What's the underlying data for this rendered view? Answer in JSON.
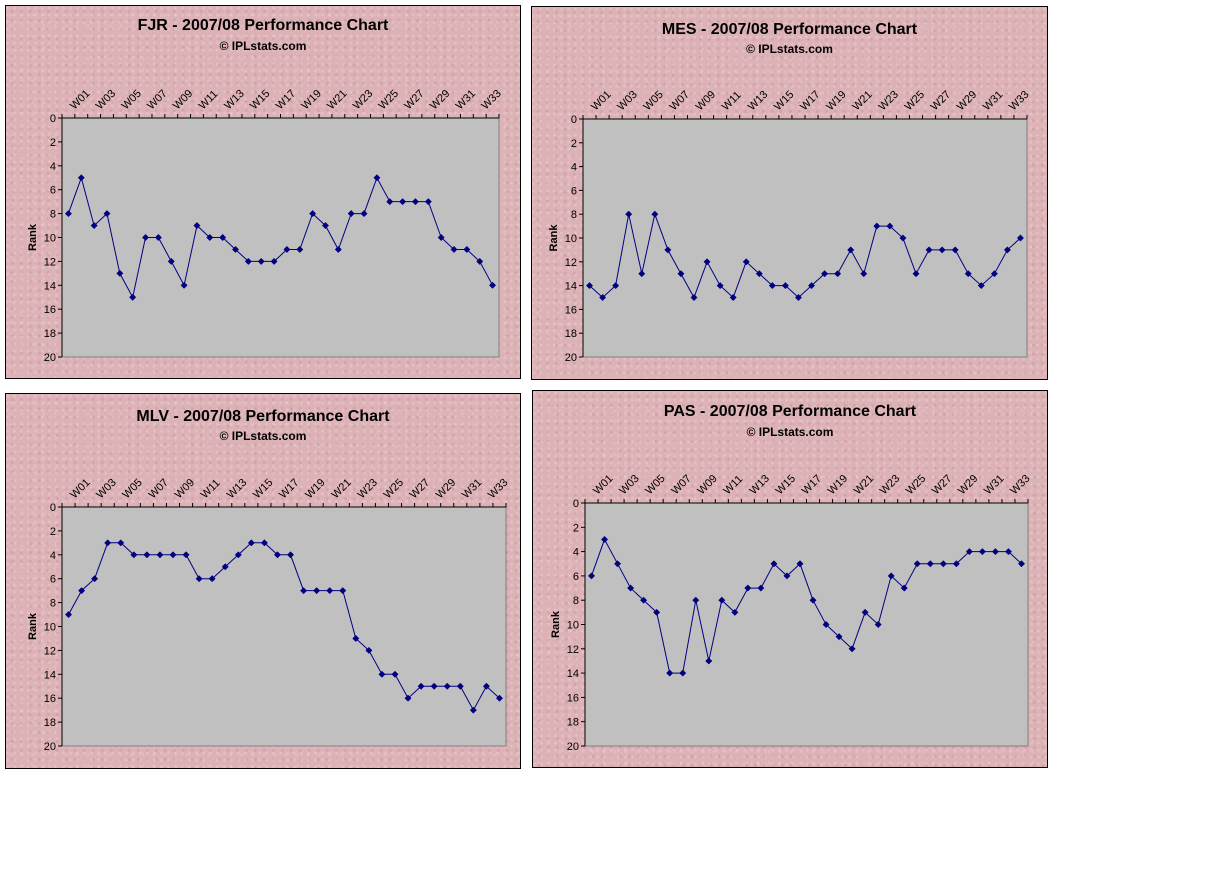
{
  "chart_data": [
    {
      "type": "line",
      "title": "FJR - 2007/08 Performance Chart",
      "subtitle": "© IPLstats.com",
      "ylabel": "Rank",
      "ylim": [
        0,
        20
      ],
      "y_inverted": true,
      "yticks": [
        0,
        2,
        4,
        6,
        8,
        10,
        12,
        14,
        16,
        18,
        20
      ],
      "xtick_labels": [
        "W01",
        "W03",
        "W05",
        "W07",
        "W09",
        "W11",
        "W13",
        "W15",
        "W17",
        "W19",
        "W21",
        "W23",
        "W25",
        "W27",
        "W29",
        "W31",
        "W33"
      ],
      "xtick_position": "top",
      "series": [
        {
          "values": [
            8,
            5,
            9,
            8,
            13,
            15,
            10,
            10,
            12,
            14,
            9,
            10,
            10,
            11,
            12,
            12,
            12,
            11,
            11,
            8,
            9,
            11,
            8,
            8,
            5,
            7,
            7,
            7,
            7,
            10,
            11,
            11,
            12,
            14
          ]
        }
      ],
      "line_color": "#000080",
      "plot_background": "#c0c0c0"
    },
    {
      "type": "line",
      "title": "MES - 2007/08 Performance Chart",
      "subtitle": "© IPLstats.com",
      "ylabel": "Rank",
      "ylim": [
        0,
        20
      ],
      "y_inverted": true,
      "yticks": [
        0,
        2,
        4,
        6,
        8,
        10,
        12,
        14,
        16,
        18,
        20
      ],
      "xtick_labels": [
        "W01",
        "W03",
        "W05",
        "W07",
        "W09",
        "W11",
        "W13",
        "W15",
        "W17",
        "W19",
        "W21",
        "W23",
        "W25",
        "W27",
        "W29",
        "W31",
        "W33"
      ],
      "xtick_position": "top",
      "series": [
        {
          "values": [
            14,
            15,
            14,
            8,
            13,
            8,
            11,
            13,
            15,
            12,
            14,
            15,
            12,
            13,
            14,
            14,
            15,
            14,
            13,
            13,
            11,
            13,
            9,
            9,
            10,
            13,
            11,
            11,
            11,
            13,
            14,
            13,
            11,
            10
          ]
        }
      ],
      "line_color": "#000080",
      "plot_background": "#c0c0c0"
    },
    {
      "type": "line",
      "title": "MLV - 2007/08 Performance Chart",
      "subtitle": "© IPLstats.com",
      "ylabel": "Rank",
      "ylim": [
        0,
        20
      ],
      "y_inverted": true,
      "yticks": [
        0,
        2,
        4,
        6,
        8,
        10,
        12,
        14,
        16,
        18,
        20
      ],
      "xtick_labels": [
        "W01",
        "W03",
        "W05",
        "W07",
        "W09",
        "W11",
        "W13",
        "W15",
        "W17",
        "W19",
        "W21",
        "W23",
        "W25",
        "W27",
        "W29",
        "W31",
        "W33"
      ],
      "xtick_position": "top",
      "series": [
        {
          "values": [
            9,
            7,
            6,
            3,
            3,
            4,
            4,
            4,
            4,
            4,
            6,
            6,
            5,
            4,
            3,
            3,
            4,
            4,
            7,
            7,
            7,
            7,
            11,
            12,
            14,
            14,
            16,
            15,
            15,
            15,
            15,
            17,
            15,
            16
          ]
        }
      ],
      "line_color": "#000080",
      "plot_background": "#c0c0c0"
    },
    {
      "type": "line",
      "title": "PAS - 2007/08 Performance Chart",
      "subtitle": "© IPLstats.com",
      "ylabel": "Rank",
      "ylim": [
        0,
        20
      ],
      "y_inverted": true,
      "yticks": [
        0,
        2,
        4,
        6,
        8,
        10,
        12,
        14,
        16,
        18,
        20
      ],
      "xtick_labels": [
        "W01",
        "W03",
        "W05",
        "W07",
        "W09",
        "W11",
        "W13",
        "W15",
        "W17",
        "W19",
        "W21",
        "W23",
        "W25",
        "W27",
        "W29",
        "W31",
        "W33"
      ],
      "xtick_position": "top",
      "series": [
        {
          "values": [
            6,
            3,
            5,
            7,
            8,
            9,
            14,
            14,
            8,
            13,
            8,
            9,
            7,
            7,
            5,
            6,
            5,
            8,
            10,
            11,
            12,
            9,
            10,
            6,
            7,
            5,
            5,
            5,
            5,
            4,
            4,
            4,
            4,
            5
          ]
        }
      ],
      "line_color": "#000080",
      "plot_background": "#c0c0c0"
    }
  ]
}
